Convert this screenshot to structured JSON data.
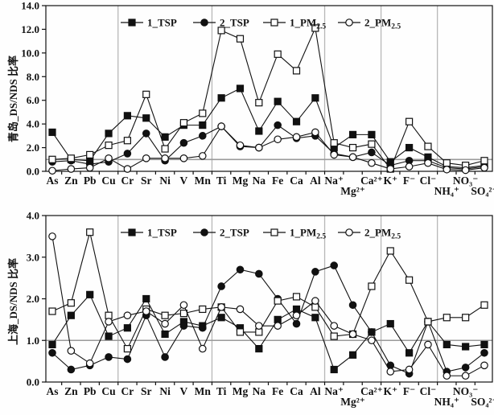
{
  "figure": {
    "background": "#fefefe",
    "line_color": "#111111",
    "separator_color": "#b8b8b8",
    "ref_line_color": "#9a9a9a",
    "reference_value": 1.0,
    "legend": [
      {
        "label": "1_TSP",
        "sub": "",
        "marker": "filled-square"
      },
      {
        "label": "2_TSP",
        "sub": "",
        "marker": "filled-circle"
      },
      {
        "label": "1_PM",
        "sub": "2.5",
        "marker": "open-square"
      },
      {
        "label": "2_PM",
        "sub": "2.5",
        "marker": "open-circle"
      }
    ],
    "second_row_indices": [
      16,
      21,
      23
    ],
    "group_separators_after": [
      3,
      8,
      14,
      17,
      20
    ]
  },
  "chart_data": [
    {
      "type": "line",
      "ylabel": "青岛_DS/NDS 比率",
      "ylim": [
        0.0,
        14.0
      ],
      "ytick_step": 2.0,
      "grid": "group-separators-only",
      "legend_position": "top-center-inside",
      "categories": [
        "As",
        "Zn",
        "Pb",
        "Cu",
        "Cr",
        "Sr",
        "Ni",
        "V",
        "Mn",
        "Ti",
        "Mg",
        "Na",
        "Fe",
        "Ca",
        "Al",
        "Na⁺",
        "Mg²⁺",
        "Ca²⁺",
        "K⁺",
        "F⁻",
        "Cl⁻",
        "NH₄⁺",
        "NO₃⁻",
        "SO₄²⁻"
      ],
      "series": [
        {
          "name": "1_TSP",
          "marker": "filled-square",
          "values": [
            3.3,
            1.0,
            0.9,
            3.2,
            4.7,
            4.5,
            2.9,
            3.9,
            3.9,
            6.2,
            7.0,
            3.4,
            5.9,
            4.2,
            6.2,
            2.0,
            3.1,
            3.1,
            0.8,
            2.0,
            1.2,
            0.4,
            0.3,
            0.5
          ]
        },
        {
          "name": "2_TSP",
          "marker": "filled-circle",
          "values": [
            0.8,
            0.9,
            0.6,
            0.8,
            1.5,
            3.2,
            0.9,
            2.4,
            3.0,
            3.8,
            2.1,
            2.0,
            3.9,
            2.8,
            3.0,
            1.5,
            1.2,
            1.6,
            0.5,
            0.9,
            0.9,
            0.3,
            0.2,
            0.4
          ]
        },
        {
          "name": "1_PM2.5",
          "marker": "open-square",
          "values": [
            1.0,
            1.1,
            1.4,
            2.2,
            2.6,
            6.5,
            1.9,
            4.1,
            4.9,
            11.9,
            11.2,
            5.8,
            9.9,
            8.5,
            12.1,
            2.4,
            2.0,
            2.3,
            0.2,
            4.2,
            2.1,
            0.7,
            0.5,
            0.9
          ]
        },
        {
          "name": "2_PM2.5",
          "marker": "open-circle",
          "values": [
            0.05,
            0.2,
            0.3,
            1.1,
            0.2,
            1.1,
            1.1,
            1.1,
            1.3,
            3.8,
            2.2,
            2.0,
            2.7,
            2.9,
            3.3,
            1.4,
            1.2,
            0.7,
            0.2,
            0.4,
            0.7,
            0.15,
            0.1,
            0.3
          ]
        }
      ]
    },
    {
      "type": "line",
      "ylabel": "上海_DS/NDS 比率",
      "ylim": [
        0.0,
        4.0
      ],
      "ytick_step": 1.0,
      "grid": "group-separators-only",
      "legend_position": "top-center-inside",
      "categories": [
        "As",
        "Zn",
        "Pb",
        "Cu",
        "Cr",
        "Sr",
        "Ni",
        "V",
        "Mn",
        "Ti",
        "Mg",
        "Na",
        "Fe",
        "Ca",
        "Al",
        "Na⁺",
        "Mg²⁺",
        "Ca²⁺",
        "K⁺",
        "F⁻",
        "Cl⁻",
        "NH₄⁺",
        "NO₃⁻",
        "SO₄²⁻"
      ],
      "series": [
        {
          "name": "1_TSP",
          "marker": "filled-square",
          "values": [
            0.9,
            1.6,
            2.1,
            1.1,
            1.3,
            2.0,
            1.15,
            1.45,
            1.35,
            1.55,
            1.3,
            0.8,
            1.5,
            1.75,
            1.55,
            0.3,
            0.65,
            1.2,
            1.4,
            0.7,
            1.45,
            0.9,
            0.85,
            0.9
          ]
        },
        {
          "name": "2_TSP",
          "marker": "filled-circle",
          "values": [
            0.7,
            0.3,
            0.4,
            0.6,
            0.55,
            1.6,
            0.6,
            1.35,
            1.3,
            2.3,
            2.7,
            2.6,
            2.0,
            1.4,
            2.65,
            2.8,
            1.85,
            1.2,
            0.4,
            0.2,
            1.45,
            0.25,
            0.35,
            0.7
          ]
        },
        {
          "name": "1_PM2.5",
          "marker": "open-square",
          "values": [
            1.7,
            1.9,
            3.6,
            1.6,
            0.8,
            1.75,
            1.6,
            1.65,
            1.75,
            1.8,
            1.2,
            1.2,
            1.95,
            2.05,
            1.8,
            1.1,
            1.15,
            2.3,
            3.15,
            2.45,
            1.45,
            1.55,
            1.55,
            1.85
          ]
        },
        {
          "name": "2_PM2.5",
          "marker": "open-circle",
          "values": [
            3.5,
            0.75,
            0.45,
            1.45,
            1.6,
            1.7,
            1.4,
            1.85,
            0.8,
            1.8,
            1.75,
            1.35,
            1.35,
            1.6,
            1.95,
            1.35,
            1.15,
            1.0,
            0.25,
            0.3,
            0.9,
            0.15,
            0.15,
            0.4
          ]
        }
      ]
    }
  ]
}
